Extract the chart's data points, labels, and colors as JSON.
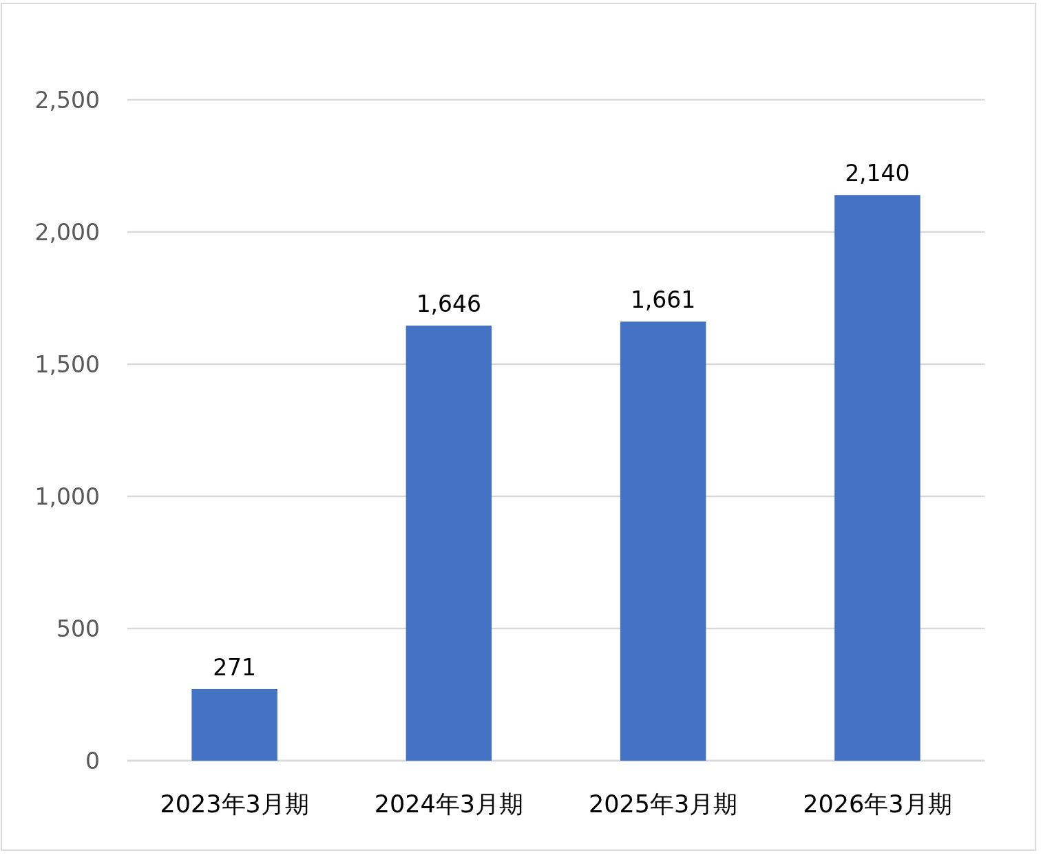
{
  "chart_data": {
    "type": "bar",
    "categories": [
      "2023年3月期",
      "2024年3月期",
      "2025年3月期",
      "2026年3月期"
    ],
    "values": [
      271,
      1646,
      1661,
      2140
    ],
    "value_labels": [
      "271",
      "1,646",
      "1,661",
      "2,140"
    ],
    "color": "#4472c4",
    "ylim": [
      0,
      2500
    ],
    "yticks": [
      0,
      500,
      {
        "value": 1000,
        "label": "1,000"
      },
      {
        "value": 1500,
        "label": "1,500"
      },
      {
        "value": 2000,
        "label": "2,000"
      },
      {
        "value": 2500,
        "label": "2,500"
      }
    ],
    "grid": "y"
  }
}
